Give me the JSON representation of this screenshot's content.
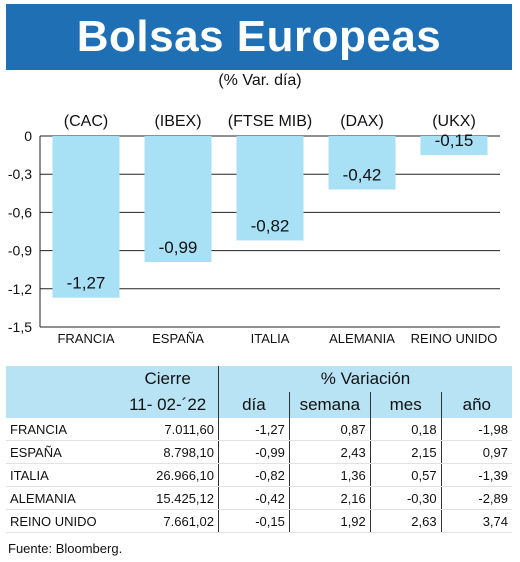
{
  "title": "Bolsas Europeas",
  "subtitle": "(% Var. día)",
  "chart_data": {
    "type": "bar",
    "title": "Bolsas Europeas",
    "subtitle": "(% Var. día)",
    "index_labels": [
      "(CAC)",
      "(IBEX)",
      "(FTSE MIB)",
      "(DAX)",
      "(UKX)"
    ],
    "categories": [
      "FRANCIA",
      "ESPAÑA",
      "ITALIA",
      "ALEMANIA",
      "REINO UNIDO"
    ],
    "values": [
      -1.27,
      -0.99,
      -0.82,
      -0.42,
      -0.15
    ],
    "value_labels": [
      "-1,27",
      "-0,99",
      "-0,82",
      "-0,42",
      "-0,15"
    ],
    "ylim": [
      -1.5,
      0
    ],
    "yticks": [
      0,
      -0.3,
      -0.6,
      -0.9,
      -1.2,
      -1.5
    ],
    "ytick_labels": [
      "0",
      "-0,3",
      "-0,6",
      "-0,9",
      "-1,2",
      "-1,5"
    ],
    "bar_color": "#a8e0f6",
    "grid": true
  },
  "table": {
    "group_headers": [
      "Cierre",
      "% Variación"
    ],
    "column_headers": [
      "11- 02-´22",
      "día",
      "semana",
      "mes",
      "año"
    ],
    "rows": [
      {
        "name": "FRANCIA",
        "cierre": "7.011,60",
        "dia": "-1,27",
        "semana": "0,87",
        "mes": "0,18",
        "ano": "-1,98"
      },
      {
        "name": "ESPAÑA",
        "cierre": "8.798,10",
        "dia": "-0,99",
        "semana": "2,43",
        "mes": "2,15",
        "ano": "0,97"
      },
      {
        "name": "ITALIA",
        "cierre": "26.966,10",
        "dia": "-0,82",
        "semana": "1,36",
        "mes": "0,57",
        "ano": "-1,39"
      },
      {
        "name": "ALEMANIA",
        "cierre": "15.425,12",
        "dia": "-0,42",
        "semana": "2,16",
        "mes": "-0,30",
        "ano": "-2,89"
      },
      {
        "name": "REINO UNIDO",
        "cierre": "7.661,02",
        "dia": "-0,15",
        "semana": "1,92",
        "mes": "2,63",
        "ano": "3,74"
      }
    ]
  },
  "source": "Fuente: Bloomberg.",
  "colors": {
    "title_bg": "#1f6fb5",
    "header_bg": "#b7e3f5",
    "bar": "#a8e0f6"
  }
}
